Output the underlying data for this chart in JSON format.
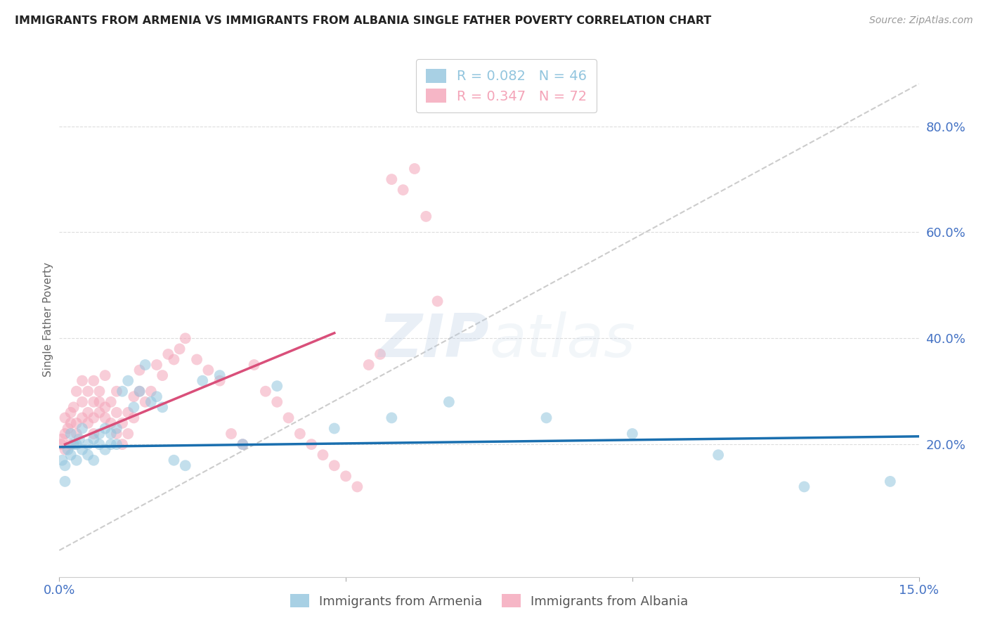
{
  "title": "IMMIGRANTS FROM ARMENIA VS IMMIGRANTS FROM ALBANIA SINGLE FATHER POVERTY CORRELATION CHART",
  "source": "Source: ZipAtlas.com",
  "ylabel": "Single Father Poverty",
  "legend_armenia": "Immigrants from Armenia",
  "legend_albania": "Immigrants from Albania",
  "R_armenia": "0.082",
  "N_armenia": "46",
  "R_albania": "0.347",
  "N_albania": "72",
  "color_armenia": "#92c5de",
  "color_albania": "#f4a4b8",
  "trend_armenia_color": "#1a6faf",
  "trend_albania_color": "#d94f7a",
  "ref_line_color": "#c0c0c0",
  "title_color": "#222222",
  "source_color": "#999999",
  "axis_label_color": "#4472c4",
  "background_color": "#ffffff",
  "xlim": [
    0.0,
    0.15
  ],
  "ylim": [
    -0.05,
    0.92
  ],
  "yticks": [
    0.2,
    0.4,
    0.6,
    0.8
  ],
  "ytick_labels": [
    "20.0%",
    "40.0%",
    "60.0%",
    "80.0%"
  ],
  "xtick_labels": [
    "0.0%",
    "15.0%"
  ],
  "watermark_zip": "ZIP",
  "watermark_atlas": "atlas",
  "armenia_x": [
    0.0005,
    0.001,
    0.001,
    0.0015,
    0.002,
    0.002,
    0.0025,
    0.003,
    0.003,
    0.0035,
    0.004,
    0.004,
    0.005,
    0.005,
    0.006,
    0.006,
    0.007,
    0.007,
    0.008,
    0.008,
    0.009,
    0.009,
    0.01,
    0.01,
    0.011,
    0.012,
    0.013,
    0.014,
    0.015,
    0.016,
    0.017,
    0.018,
    0.02,
    0.022,
    0.025,
    0.028,
    0.032,
    0.038,
    0.048,
    0.058,
    0.068,
    0.085,
    0.1,
    0.115,
    0.13,
    0.145
  ],
  "armenia_y": [
    0.17,
    0.16,
    0.13,
    0.19,
    0.18,
    0.22,
    0.2,
    0.2,
    0.17,
    0.21,
    0.19,
    0.23,
    0.18,
    0.2,
    0.21,
    0.17,
    0.2,
    0.22,
    0.23,
    0.19,
    0.2,
    0.22,
    0.2,
    0.23,
    0.3,
    0.32,
    0.27,
    0.3,
    0.35,
    0.28,
    0.29,
    0.27,
    0.17,
    0.16,
    0.32,
    0.33,
    0.2,
    0.31,
    0.23,
    0.25,
    0.28,
    0.25,
    0.22,
    0.18,
    0.12,
    0.13
  ],
  "albania_x": [
    0.0003,
    0.0005,
    0.001,
    0.001,
    0.001,
    0.0015,
    0.002,
    0.002,
    0.002,
    0.0025,
    0.003,
    0.003,
    0.003,
    0.004,
    0.004,
    0.004,
    0.005,
    0.005,
    0.005,
    0.006,
    0.006,
    0.006,
    0.006,
    0.007,
    0.007,
    0.007,
    0.008,
    0.008,
    0.008,
    0.009,
    0.009,
    0.01,
    0.01,
    0.01,
    0.011,
    0.011,
    0.012,
    0.012,
    0.013,
    0.013,
    0.014,
    0.014,
    0.015,
    0.016,
    0.017,
    0.018,
    0.019,
    0.02,
    0.021,
    0.022,
    0.024,
    0.026,
    0.028,
    0.03,
    0.032,
    0.034,
    0.036,
    0.038,
    0.04,
    0.042,
    0.044,
    0.046,
    0.048,
    0.05,
    0.052,
    0.054,
    0.056,
    0.058,
    0.06,
    0.062,
    0.064,
    0.066
  ],
  "albania_y": [
    0.2,
    0.21,
    0.22,
    0.25,
    0.19,
    0.23,
    0.2,
    0.24,
    0.26,
    0.27,
    0.22,
    0.24,
    0.3,
    0.25,
    0.28,
    0.32,
    0.24,
    0.26,
    0.3,
    0.22,
    0.25,
    0.28,
    0.32,
    0.26,
    0.28,
    0.3,
    0.25,
    0.27,
    0.33,
    0.24,
    0.28,
    0.22,
    0.26,
    0.3,
    0.2,
    0.24,
    0.22,
    0.26,
    0.25,
    0.29,
    0.3,
    0.34,
    0.28,
    0.3,
    0.35,
    0.33,
    0.37,
    0.36,
    0.38,
    0.4,
    0.36,
    0.34,
    0.32,
    0.22,
    0.2,
    0.35,
    0.3,
    0.28,
    0.25,
    0.22,
    0.2,
    0.18,
    0.16,
    0.14,
    0.12,
    0.35,
    0.37,
    0.7,
    0.68,
    0.72,
    0.63,
    0.47
  ],
  "trend_armenia_x0": 0.0,
  "trend_armenia_y0": 0.195,
  "trend_armenia_x1": 0.15,
  "trend_armenia_y1": 0.215,
  "trend_albania_x0": 0.001,
  "trend_albania_y0": 0.2,
  "trend_albania_x1": 0.048,
  "trend_albania_y1": 0.41,
  "ref_line_x0": 0.0,
  "ref_line_y0": 0.0,
  "ref_line_x1": 0.15,
  "ref_line_y1": 0.88
}
